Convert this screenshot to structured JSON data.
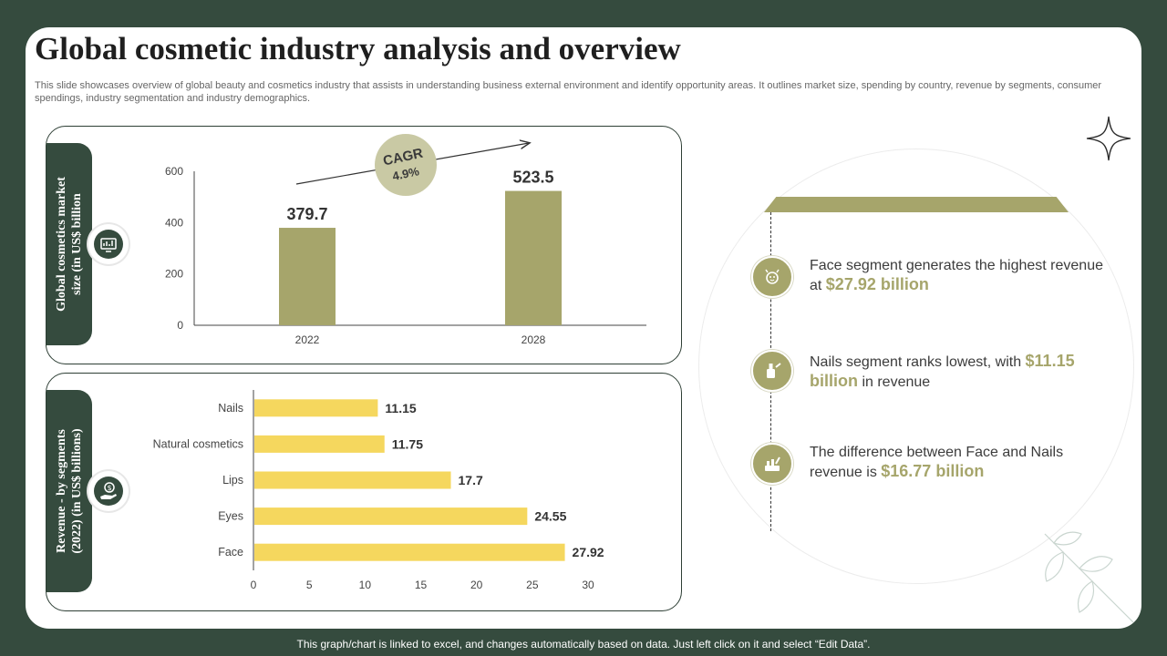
{
  "title": "Global cosmetic industry analysis and overview",
  "description": "This slide showcases overview of global beauty and cosmetics industry that assists in understanding business external environment and identify opportunity areas. It outlines market size, spending by country, revenue by segments, consumer spendings, industry segmentation and industry demographics.",
  "panels": {
    "market_label": "Global cosmetics market\nsize (in US$ billion",
    "revenue_label": "Revenue - by segments\n(2022) (in US$ billions)"
  },
  "cagr": {
    "label": "CAGR",
    "value": "4.9%"
  },
  "chart_data": [
    {
      "type": "bar",
      "categories": [
        "2022",
        "2028"
      ],
      "values": [
        379.7,
        523.5
      ],
      "value_labels": [
        "379.7",
        "523.5"
      ],
      "yticks": [
        "0",
        "200",
        "400",
        "600"
      ],
      "ylim": [
        0,
        600
      ],
      "color": "#a6a56b",
      "title": "",
      "xlabel": "",
      "ylabel": ""
    },
    {
      "type": "bar",
      "orientation": "horizontal",
      "categories": [
        "Nails",
        "Natural cosmetics",
        "Lips",
        "Eyes",
        "Face"
      ],
      "values": [
        11.15,
        11.75,
        17.7,
        24.55,
        27.92
      ],
      "value_labels": [
        "11.15",
        "11.75",
        "17.7",
        "24.55",
        "27.92"
      ],
      "xticks": [
        "0",
        "5",
        "10",
        "15",
        "20",
        "25",
        "30"
      ],
      "xlim": [
        0,
        30
      ],
      "color": "#f5d75e",
      "title": "",
      "xlabel": "",
      "ylabel": ""
    }
  ],
  "insights": [
    {
      "pre": "Face segment generates the highest revenue at ",
      "highlight": "$27.92 billion",
      "post": ""
    },
    {
      "pre": "Nails segment ranks lowest, with ",
      "highlight": "$11.15 billion",
      "post": " in revenue"
    },
    {
      "pre": "The difference between Face and Nails revenue is ",
      "highlight": "$16.77 billion",
      "post": ""
    }
  ],
  "footer": "This graph/chart is linked to excel, and changes automatically based on data. Just left click on it and select “Edit Data”.",
  "colors": {
    "background": "#354b3e",
    "accent": "#a6a56b",
    "bar_yellow": "#f5d75e"
  }
}
